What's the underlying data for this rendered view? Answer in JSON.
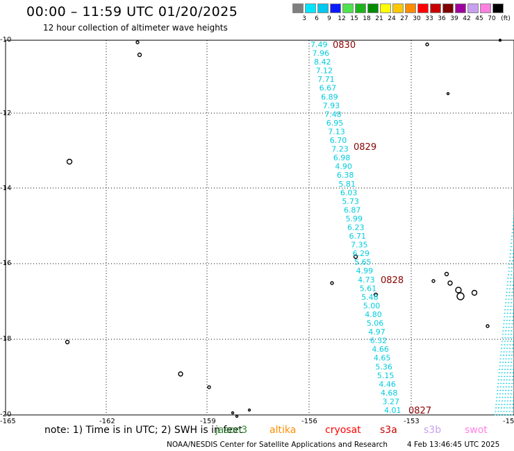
{
  "header": {
    "title": "00:00 – 11:59 UTC 01/20/2025",
    "subtitle": "12 hour collection of altimeter wave heights"
  },
  "legend": {
    "unit": "(ft)",
    "entries": [
      {
        "label": "3",
        "color": "#7f7f7f"
      },
      {
        "label": "6",
        "color": "#00e5ff"
      },
      {
        "label": "9",
        "color": "#00c8f0"
      },
      {
        "label": "12",
        "color": "#0a1aff"
      },
      {
        "label": "15",
        "color": "#4de34d"
      },
      {
        "label": "18",
        "color": "#1db31d"
      },
      {
        "label": "21",
        "color": "#008c00"
      },
      {
        "label": "24",
        "color": "#ffff00"
      },
      {
        "label": "27",
        "color": "#ffc800"
      },
      {
        "label": "30",
        "color": "#ff8c00"
      },
      {
        "label": "33",
        "color": "#ff0000"
      },
      {
        "label": "36",
        "color": "#c80000"
      },
      {
        "label": "39",
        "color": "#800000"
      },
      {
        "label": "42",
        "color": "#a000a0"
      },
      {
        "label": "45",
        "color": "#c8a0f0"
      },
      {
        "label": "70",
        "color": "#ff80e0"
      },
      {
        "label": "",
        "color": "#000000"
      }
    ]
  },
  "map": {
    "lat_labels": [
      "-10",
      "-12",
      "-14",
      "-16",
      "-18",
      "-20"
    ],
    "lon_labels": [
      "-165",
      "-162",
      "-159",
      "-156",
      "-153",
      "-15"
    ],
    "track_color": "#00ccdd",
    "time_color": "#8b0000",
    "track_values": [
      "7.49",
      "7.96",
      "8.42",
      "7.12",
      "7.71",
      "6.67",
      "6.89",
      "7.93",
      "7.48",
      "6.95",
      "7.13",
      "6.70",
      "7.23",
      "6.98",
      "4.90",
      "6.38",
      "5.81",
      "6.03",
      "5.73",
      "6.87",
      "5.99",
      "6.23",
      "6.71",
      "7.35",
      "6.29",
      "5.65",
      "4.99",
      "4.73",
      "5.61",
      "5.48",
      "5.00",
      "4.80",
      "5.06",
      "4.97",
      "6.32",
      "4.66",
      "4.65",
      "5.36",
      "5.15",
      "4.46",
      "4.68",
      "3.27",
      "4.01"
    ],
    "time_labels": [
      "0830",
      "0829",
      "0828",
      "0827"
    ]
  },
  "footer": {
    "note": "note:  1) Time is in UTC; 2) SWH is in feet",
    "satellites": [
      {
        "name": "jason3",
        "color": "#2e8b2e"
      },
      {
        "name": "altika",
        "color": "#ff8c00"
      },
      {
        "name": "cryosat",
        "color": "#ff0000"
      },
      {
        "name": "s3a",
        "color": "#c80000"
      },
      {
        "name": "s3b",
        "color": "#c8a0f0"
      },
      {
        "name": "swot",
        "color": "#ff80e0"
      }
    ],
    "credit": "NOAA/NESDIS Center for Satellite Applications and Research",
    "timestamp": "4 Feb 13:46:45 UTC 2025"
  }
}
